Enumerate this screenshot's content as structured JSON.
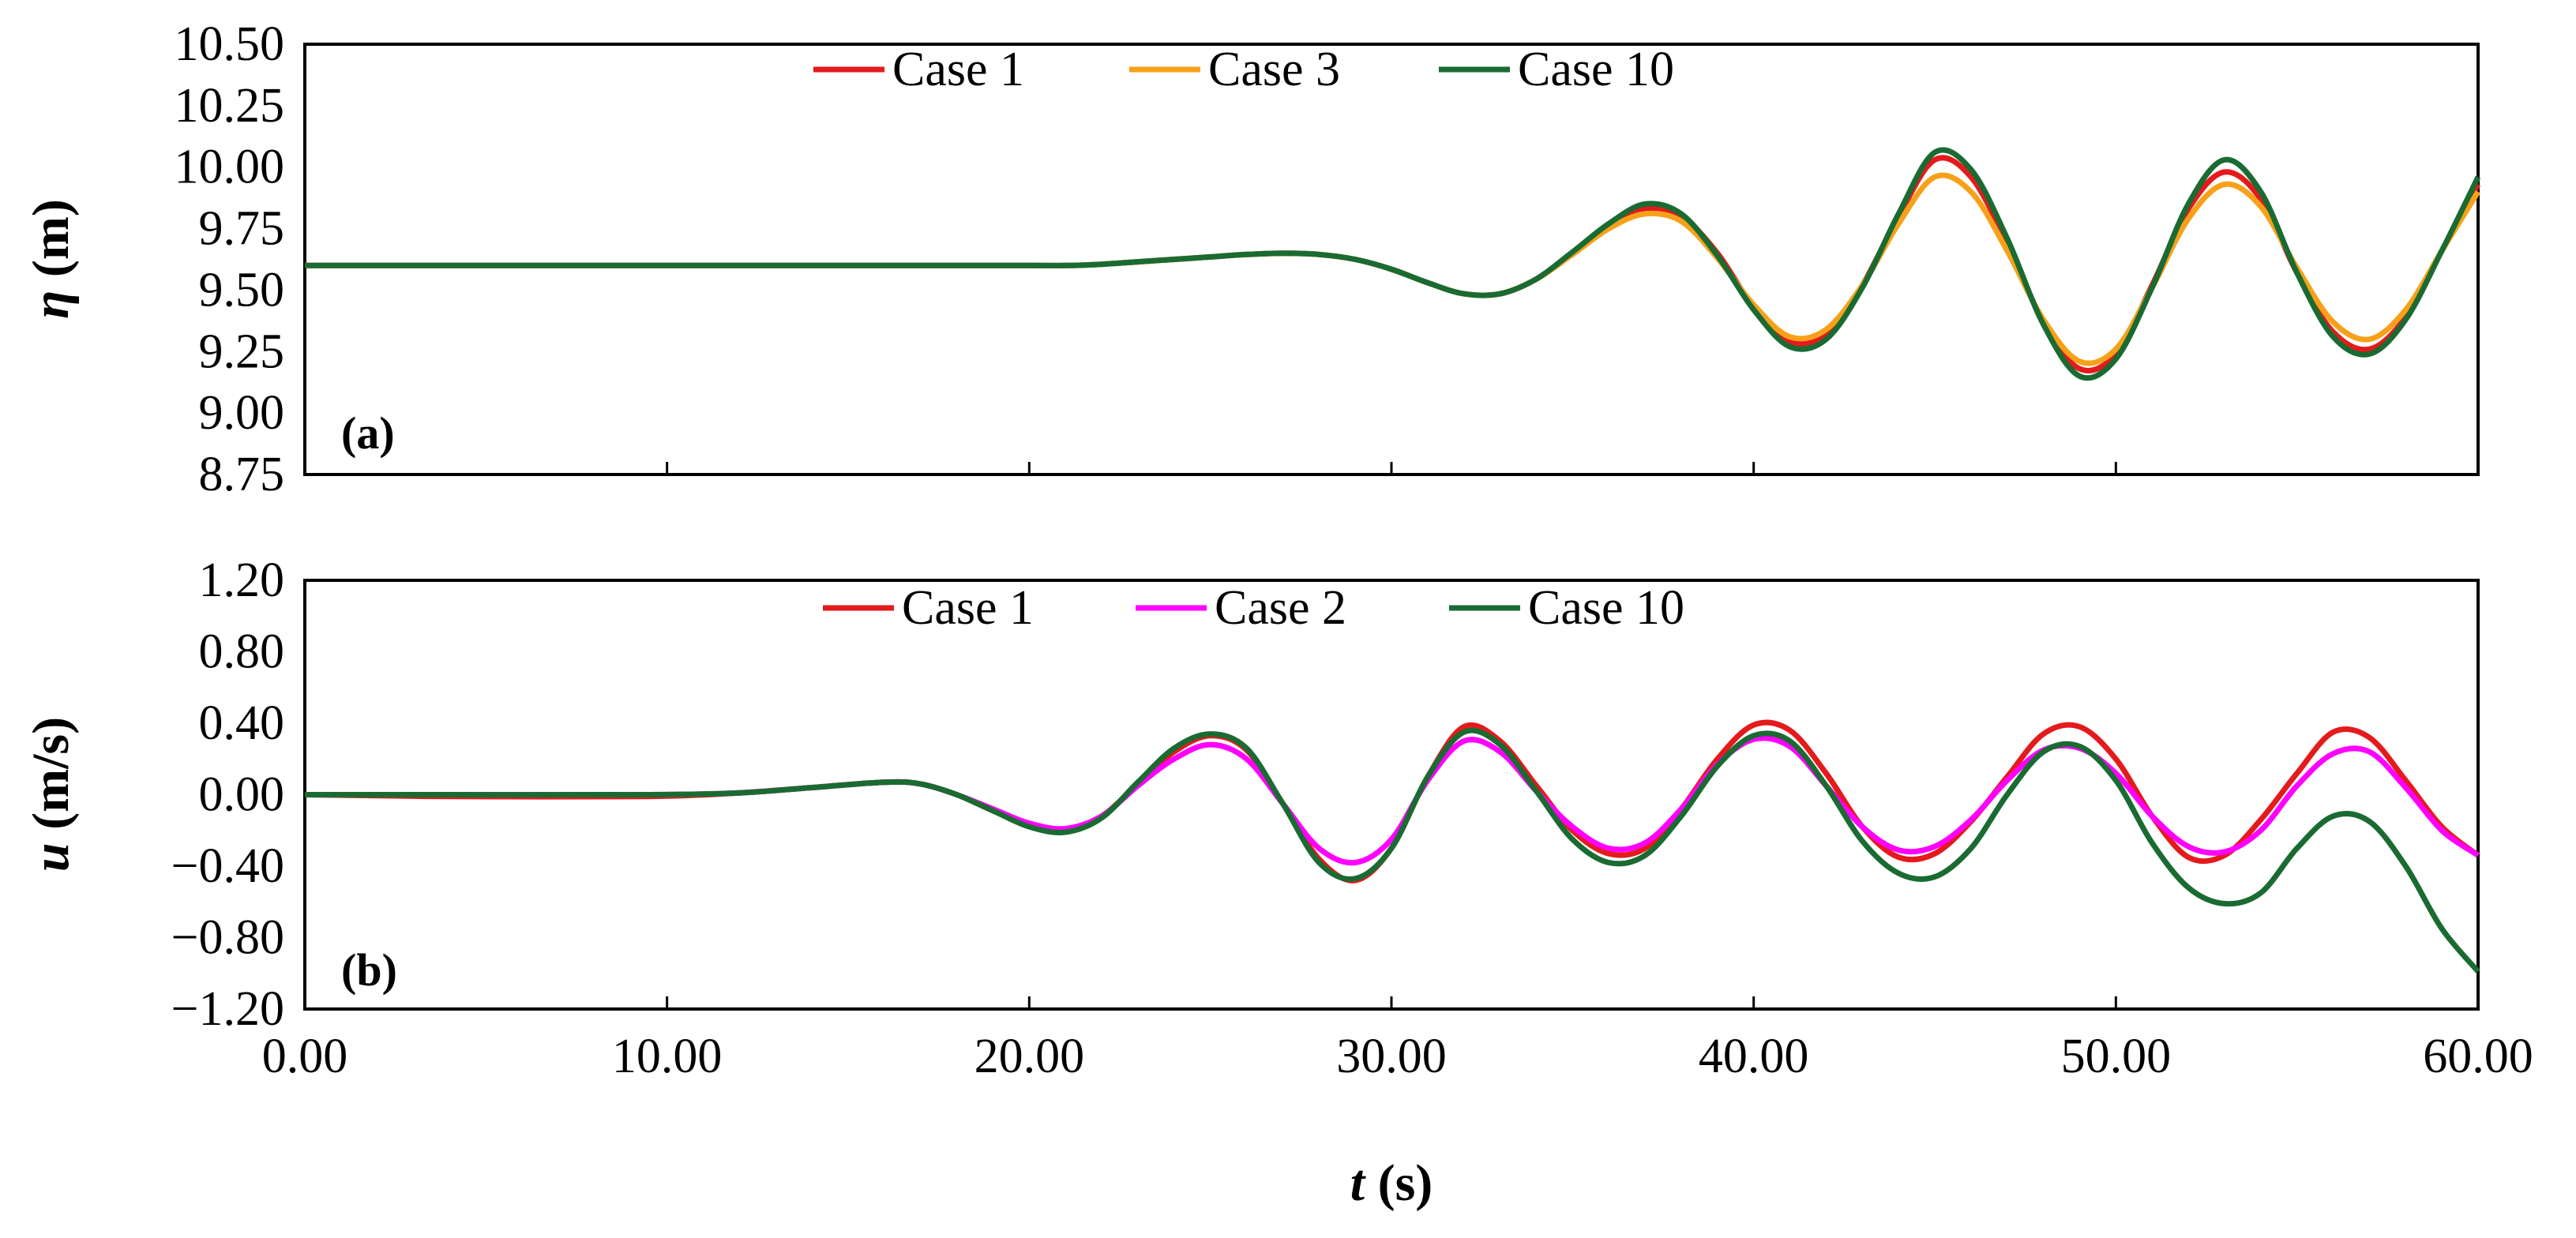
{
  "chart_data": [
    {
      "type": "line",
      "panel_label": "(a)",
      "ylabel_symbol": "η",
      "ylabel_unit": " (m)",
      "xlim": [
        0,
        60
      ],
      "ylim": [
        8.75,
        10.5
      ],
      "xticks": [
        0,
        10,
        20,
        30,
        40,
        50,
        60
      ],
      "yticks": [
        "8.75",
        "9.00",
        "9.25",
        "9.50",
        "9.75",
        "10.00",
        "10.25",
        "10.50"
      ],
      "legend_position": "top-center",
      "grid": false,
      "series": [
        {
          "name": "Case 1",
          "color": "#e41a1c",
          "x": [
            0,
            5,
            10,
            15,
            20,
            21,
            22,
            23,
            24,
            25,
            26,
            27,
            28,
            29,
            30,
            31,
            32,
            33,
            34,
            35,
            36,
            37,
            38,
            39,
            40,
            41,
            42,
            43,
            44,
            45,
            46,
            47,
            48,
            49,
            50,
            51,
            52,
            53,
            54,
            55,
            56,
            57,
            58,
            59,
            60
          ],
          "y": [
            9.6,
            9.6,
            9.6,
            9.6,
            9.6,
            9.6,
            9.605,
            9.615,
            9.625,
            9.635,
            9.645,
            9.65,
            9.645,
            9.625,
            9.585,
            9.53,
            9.485,
            9.485,
            9.545,
            9.65,
            9.76,
            9.83,
            9.8,
            9.65,
            9.43,
            9.29,
            9.32,
            9.52,
            9.8,
            10.03,
            9.96,
            9.69,
            9.37,
            9.18,
            9.24,
            9.52,
            9.83,
            9.98,
            9.87,
            9.57,
            9.33,
            9.26,
            9.39,
            9.66,
            9.93
          ]
        },
        {
          "name": "Case 3",
          "color": "#f7a11a",
          "x": [
            0,
            5,
            10,
            15,
            20,
            21,
            22,
            23,
            24,
            25,
            26,
            27,
            28,
            29,
            30,
            31,
            32,
            33,
            34,
            35,
            36,
            37,
            38,
            39,
            40,
            41,
            42,
            43,
            44,
            45,
            46,
            47,
            48,
            49,
            50,
            51,
            52,
            53,
            54,
            55,
            56,
            57,
            58,
            59,
            60
          ],
          "y": [
            9.6,
            9.6,
            9.6,
            9.6,
            9.6,
            9.6,
            9.605,
            9.615,
            9.625,
            9.635,
            9.645,
            9.65,
            9.645,
            9.625,
            9.585,
            9.53,
            9.485,
            9.485,
            9.545,
            9.645,
            9.75,
            9.81,
            9.78,
            9.63,
            9.44,
            9.31,
            9.34,
            9.52,
            9.77,
            9.96,
            9.9,
            9.66,
            9.38,
            9.21,
            9.26,
            9.51,
            9.79,
            9.93,
            9.84,
            9.59,
            9.37,
            9.3,
            9.42,
            9.66,
            9.9
          ]
        },
        {
          "name": "Case 10",
          "color": "#1a6b32",
          "x": [
            0,
            5,
            10,
            15,
            20,
            21,
            22,
            23,
            24,
            25,
            26,
            27,
            28,
            29,
            30,
            31,
            32,
            33,
            34,
            35,
            36,
            37,
            38,
            39,
            40,
            41,
            42,
            43,
            44,
            45,
            46,
            47,
            48,
            49,
            50,
            51,
            52,
            53,
            54,
            55,
            56,
            57,
            58,
            59,
            60
          ],
          "y": [
            9.6,
            9.6,
            9.6,
            9.6,
            9.6,
            9.6,
            9.605,
            9.615,
            9.625,
            9.635,
            9.645,
            9.65,
            9.645,
            9.625,
            9.585,
            9.53,
            9.485,
            9.485,
            9.545,
            9.655,
            9.77,
            9.85,
            9.81,
            9.64,
            9.42,
            9.27,
            9.3,
            9.51,
            9.81,
            10.06,
            9.99,
            9.71,
            9.36,
            9.15,
            9.22,
            9.51,
            9.85,
            10.03,
            9.9,
            9.57,
            9.31,
            9.24,
            9.38,
            9.66,
            9.96
          ]
        }
      ]
    },
    {
      "type": "line",
      "panel_label": "(b)",
      "ylabel_symbol": "u",
      "ylabel_unit": " (m/s)",
      "xlabel_symbol": "t",
      "xlabel_unit": " (s)",
      "xlim": [
        0,
        60
      ],
      "ylim": [
        -1.2,
        1.2
      ],
      "xticks": [
        "0.00",
        "10.00",
        "20.00",
        "30.00",
        "40.00",
        "50.00",
        "60.00"
      ],
      "yticks": [
        "-1.20",
        "-0.80",
        "-0.40",
        "0.00",
        "0.40",
        "0.80",
        "1.20"
      ],
      "legend_position": "top-center",
      "grid": false,
      "series": [
        {
          "name": "Case 1",
          "color": "#e41a1c",
          "x": [
            0,
            4,
            9.5,
            12,
            14,
            16,
            17,
            18,
            19,
            20,
            21,
            22,
            23,
            24,
            25,
            26,
            27,
            28,
            29,
            30,
            31,
            32,
            33,
            34,
            35,
            36,
            37,
            38,
            39,
            40,
            41,
            42,
            43,
            44,
            45,
            46,
            47,
            48,
            49,
            50,
            51,
            52,
            53,
            54,
            55,
            56,
            57,
            58,
            59,
            60
          ],
          "y": [
            0,
            -0.01,
            -0.01,
            0.01,
            0.04,
            0.07,
            0.06,
            0.0,
            -0.09,
            -0.17,
            -0.2,
            -0.12,
            0.06,
            0.24,
            0.33,
            0.25,
            -0.05,
            -0.36,
            -0.48,
            -0.3,
            0.1,
            0.38,
            0.3,
            0.05,
            -0.2,
            -0.33,
            -0.3,
            -0.08,
            0.2,
            0.39,
            0.36,
            0.12,
            -0.18,
            -0.35,
            -0.33,
            -0.15,
            0.1,
            0.34,
            0.38,
            0.2,
            -0.12,
            -0.35,
            -0.34,
            -0.14,
            0.12,
            0.35,
            0.32,
            0.08,
            -0.18,
            -0.34
          ]
        },
        {
          "name": "Case 2",
          "color": "#ff00ff",
          "x": [
            0,
            4,
            9.5,
            12,
            14,
            16,
            17,
            18,
            19,
            20,
            21,
            22,
            23,
            24,
            25,
            26,
            27,
            28,
            29,
            30,
            31,
            32,
            33,
            34,
            35,
            36,
            37,
            38,
            39,
            40,
            41,
            42,
            43,
            44,
            45,
            46,
            47,
            48,
            49,
            50,
            51,
            52,
            53,
            54,
            55,
            56,
            57,
            58,
            59,
            60
          ],
          "y": [
            0,
            0,
            0,
            0.01,
            0.04,
            0.07,
            0.06,
            0.0,
            -0.08,
            -0.16,
            -0.19,
            -0.12,
            0.05,
            0.2,
            0.28,
            0.2,
            -0.05,
            -0.3,
            -0.38,
            -0.25,
            0.08,
            0.3,
            0.24,
            0.02,
            -0.18,
            -0.3,
            -0.27,
            -0.08,
            0.17,
            0.31,
            0.27,
            0.05,
            -0.18,
            -0.31,
            -0.29,
            -0.14,
            0.08,
            0.25,
            0.26,
            0.12,
            -0.12,
            -0.29,
            -0.32,
            -0.2,
            0.05,
            0.23,
            0.24,
            0.04,
            -0.2,
            -0.34
          ]
        },
        {
          "name": "Case 10",
          "color": "#1a6b32",
          "x": [
            0,
            4,
            9.5,
            12,
            14,
            16,
            17,
            18,
            19,
            20,
            21,
            22,
            23,
            24,
            25,
            26,
            27,
            28,
            29,
            30,
            31,
            32,
            33,
            34,
            35,
            36,
            37,
            38,
            39,
            40,
            41,
            42,
            43,
            44,
            45,
            46,
            47,
            48,
            49,
            50,
            51,
            52,
            53,
            54,
            55,
            56,
            57,
            58,
            59,
            60
          ],
          "y": [
            0,
            0,
            0,
            0.01,
            0.04,
            0.07,
            0.06,
            0.0,
            -0.09,
            -0.18,
            -0.21,
            -0.13,
            0.07,
            0.26,
            0.34,
            0.26,
            -0.05,
            -0.38,
            -0.47,
            -0.3,
            0.1,
            0.35,
            0.28,
            0.02,
            -0.25,
            -0.38,
            -0.34,
            -0.12,
            0.16,
            0.33,
            0.3,
            0.05,
            -0.26,
            -0.44,
            -0.46,
            -0.3,
            0.0,
            0.24,
            0.27,
            0.08,
            -0.27,
            -0.52,
            -0.61,
            -0.55,
            -0.3,
            -0.12,
            -0.15,
            -0.4,
            -0.75,
            -0.99
          ]
        }
      ]
    }
  ]
}
